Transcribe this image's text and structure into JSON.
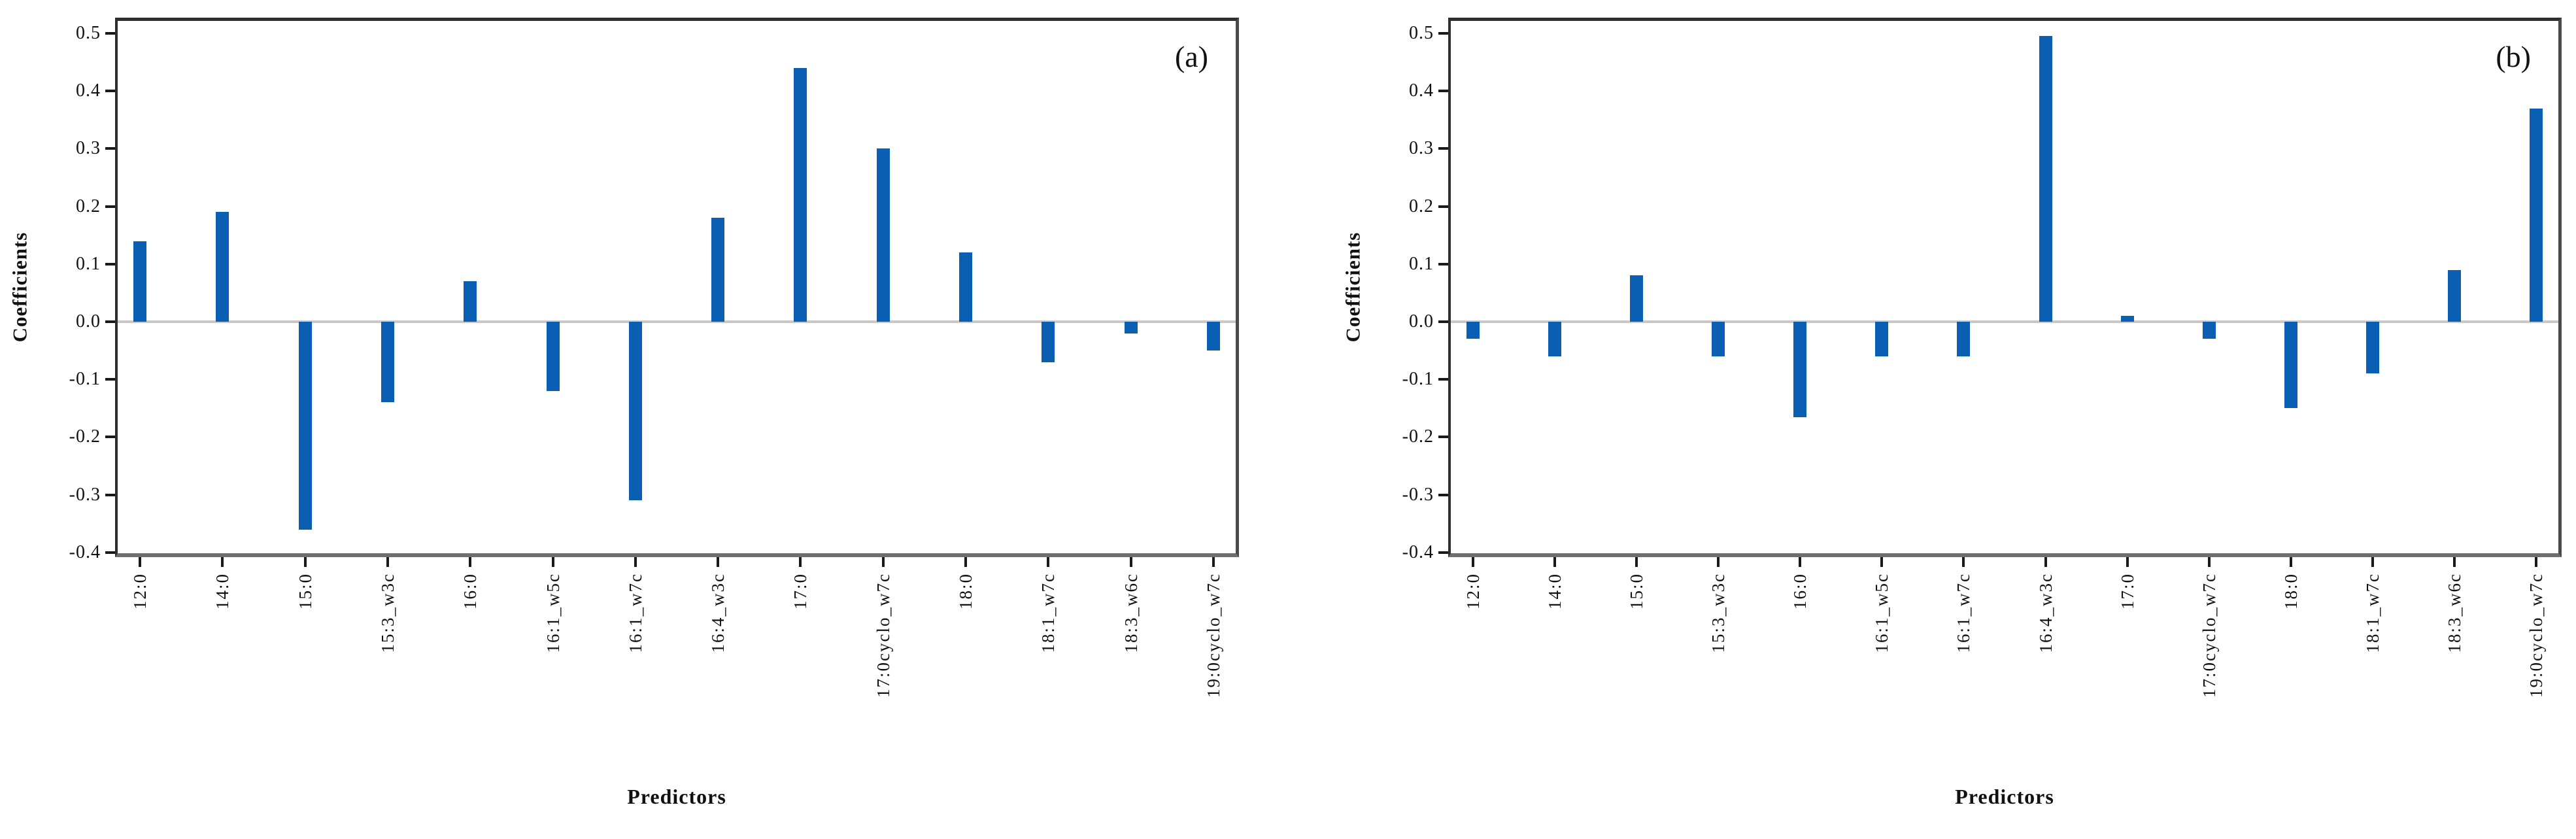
{
  "figure": {
    "background": "#ffffff",
    "bar_color": "#0B5FB2",
    "zero_line_color": "#C8C8C8"
  },
  "chart_data": [
    {
      "type": "bar",
      "title": "(a)",
      "xlabel": "Predictors",
      "ylabel": "Coefficients",
      "ylim": [
        -0.41,
        0.52
      ],
      "grid": false,
      "legend": "none",
      "ytick_labels": [
        "0.5",
        "0.4",
        "0.3",
        "0.2",
        "0.1",
        "0.0",
        "-0.1",
        "-0.2",
        "-0.3",
        "-0.4"
      ],
      "categories": [
        "12:0",
        "14:0",
        "15:0",
        "15:3_w3c",
        "16:0",
        "16:1_w5c",
        "16:1_w7c",
        "16:4_w3c",
        "17:0",
        "17:0cyclo_w7c",
        "18:0",
        "18:1_w7c",
        "18:3_w6c",
        "19:0cyclo_w7c"
      ],
      "values": [
        0.14,
        0.19,
        -0.36,
        -0.14,
        0.07,
        -0.12,
        -0.31,
        0.18,
        0.44,
        0.3,
        0.12,
        -0.07,
        -0.02,
        -0.05
      ]
    },
    {
      "type": "bar",
      "title": "(b)",
      "xlabel": "Predictors",
      "ylabel": "Coefficients",
      "ylim": [
        -0.41,
        0.52
      ],
      "grid": false,
      "legend": "none",
      "ytick_labels": [
        "0.5",
        "0.4",
        "0.3",
        "0.2",
        "0.1",
        "0.0",
        "-0.1",
        "-0.2",
        "-0.3",
        "-0.4"
      ],
      "categories": [
        "12:0",
        "14:0",
        "15:0",
        "15:3_w3c",
        "16:0",
        "16:1_w5c",
        "16:1_w7c",
        "16:4_w3c",
        "17:0",
        "17:0cyclo_w7c",
        "18:0",
        "18:1_w7c",
        "18:3_w6c",
        "19:0cyclo_w7c"
      ],
      "values": [
        -0.03,
        -0.06,
        0.08,
        -0.06,
        -0.165,
        -0.06,
        -0.06,
        0.495,
        0.01,
        -0.03,
        -0.15,
        -0.09,
        0.09,
        0.37
      ]
    }
  ]
}
